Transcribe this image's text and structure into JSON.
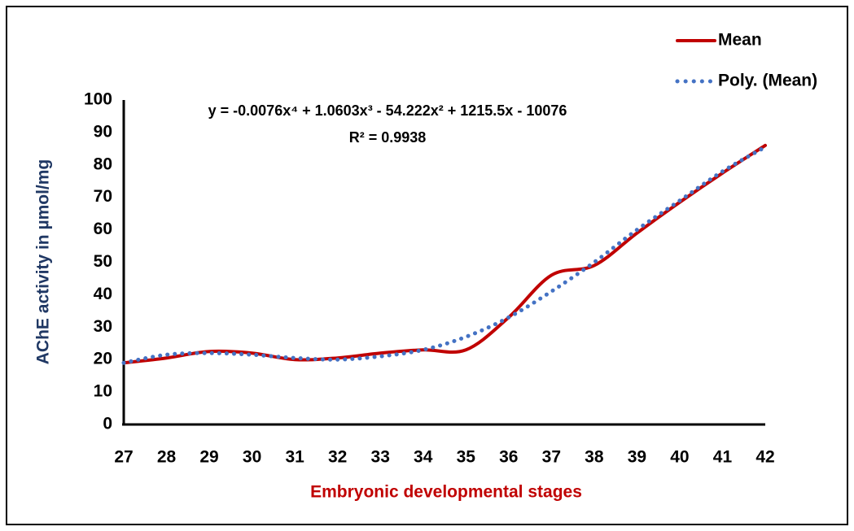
{
  "chart_data": {
    "type": "line",
    "equation": "y = -0.0076x⁴ + 1.0603x³ - 54.222x² + 1215.5x - 10076",
    "r_squared": "R² = 0.9938",
    "x_label": "Embryonic developmental stages",
    "y_label": "AChE activity in µmol/mg",
    "x": [
      27,
      28,
      29,
      30,
      31,
      32,
      33,
      34,
      35,
      36,
      37,
      38,
      39,
      40,
      41,
      42
    ],
    "xlim": [
      27,
      42
    ],
    "xticks": [
      27,
      28,
      29,
      30,
      31,
      32,
      33,
      34,
      35,
      36,
      37,
      38,
      39,
      40,
      41,
      42
    ],
    "ylim": [
      0,
      100
    ],
    "yticks": [
      0,
      10,
      20,
      30,
      40,
      50,
      60,
      70,
      80,
      90,
      100
    ],
    "legend": "top-right",
    "series": [
      {
        "name": "Mean",
        "color": "#c00000",
        "style": "solid",
        "values": [
          19,
          20.5,
          22.5,
          22,
          20,
          20.5,
          22,
          23,
          23,
          33,
          46,
          49,
          59,
          68.5,
          77.5,
          86
        ]
      },
      {
        "name": "Poly. (Mean)",
        "color": "#4472c4",
        "style": "dotted",
        "values": [
          19,
          21.5,
          22,
          21.5,
          20.5,
          20,
          21,
          23,
          27,
          33,
          41,
          50,
          60,
          69,
          78,
          85.5
        ]
      }
    ]
  }
}
